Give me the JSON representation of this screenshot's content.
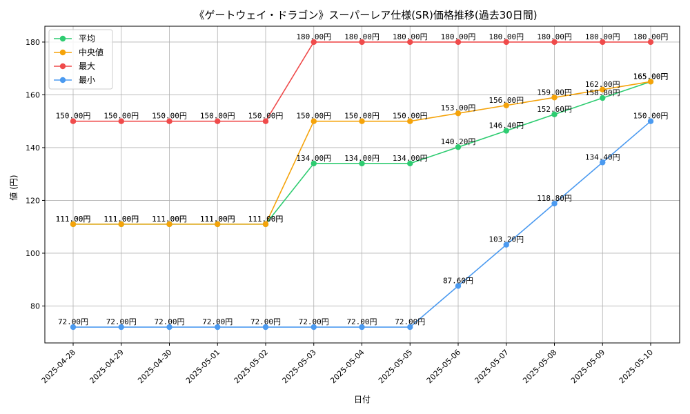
{
  "chart_data": {
    "type": "line",
    "title": "《ゲートウェイ・ドラゴン》スーパーレア仕様(SR)価格推移(過去30日間)",
    "xlabel": "日付",
    "ylabel": "値 (円)",
    "ylim": [
      66,
      186
    ],
    "yticks": [
      80,
      100,
      120,
      140,
      160,
      180
    ],
    "grid": true,
    "legend_position": "top-left",
    "value_suffix": "円",
    "categories": [
      "2025-04-28",
      "2025-04-29",
      "2025-04-30",
      "2025-05-01",
      "2025-05-02",
      "2025-05-03",
      "2025-05-04",
      "2025-05-05",
      "2025-05-06",
      "2025-05-07",
      "2025-05-08",
      "2025-05-09",
      "2025-05-10"
    ],
    "series": [
      {
        "name": "平均",
        "color": "#2ecc71",
        "values": [
          111.0,
          111.0,
          111.0,
          111.0,
          111.0,
          134.0,
          134.0,
          134.0,
          140.2,
          146.4,
          152.6,
          158.8,
          165.0
        ]
      },
      {
        "name": "中央値",
        "color": "#f5a30a",
        "values": [
          111.0,
          111.0,
          111.0,
          111.0,
          111.0,
          150.0,
          150.0,
          150.0,
          153.0,
          156.0,
          159.0,
          162.0,
          165.0
        ]
      },
      {
        "name": "最大",
        "color": "#ef4b4b",
        "values": [
          150.0,
          150.0,
          150.0,
          150.0,
          150.0,
          180.0,
          180.0,
          180.0,
          180.0,
          180.0,
          180.0,
          180.0,
          180.0
        ]
      },
      {
        "name": "最小",
        "color": "#4b9af0",
        "values": [
          72.0,
          72.0,
          72.0,
          72.0,
          72.0,
          72.0,
          72.0,
          72.0,
          87.6,
          103.2,
          118.8,
          134.4,
          150.0
        ]
      }
    ]
  }
}
